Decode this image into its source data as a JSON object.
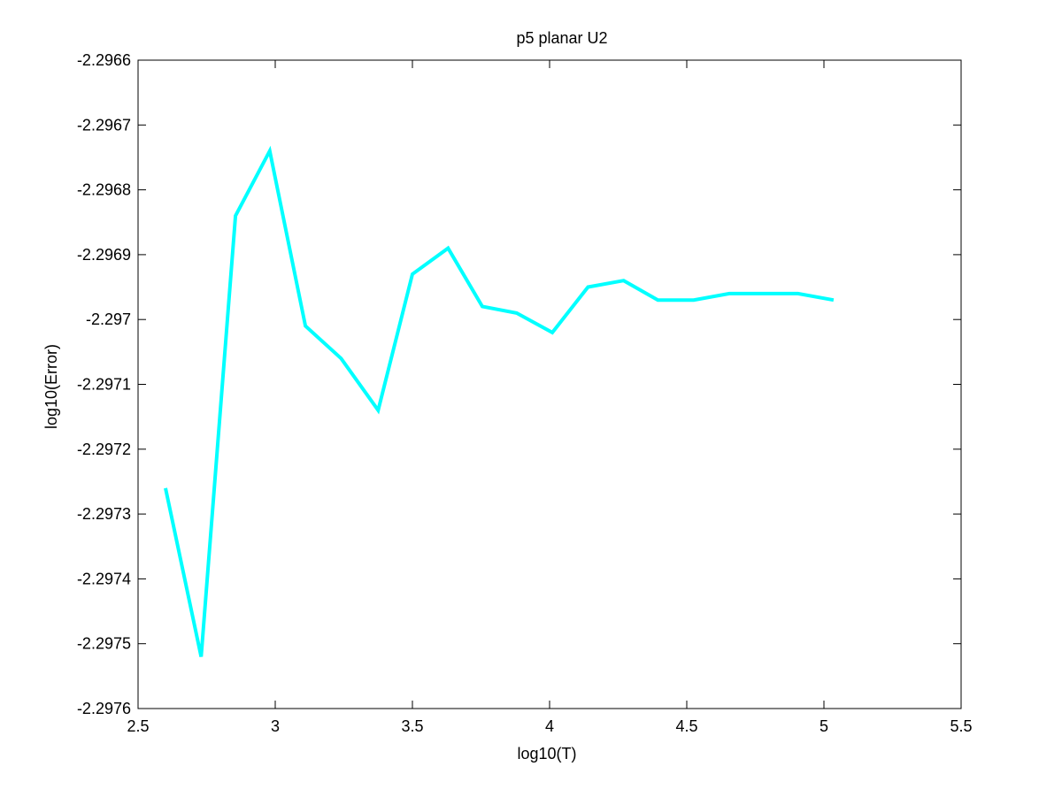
{
  "chart_data": {
    "type": "line",
    "title": "p5 planar U2",
    "xlabel": "log10(T)",
    "ylabel": "log10(Error)",
    "xlim": [
      2.5,
      5.5
    ],
    "ylim": [
      -2.2976,
      -2.2966
    ],
    "x_ticks": [
      2.5,
      3,
      3.5,
      4,
      4.5,
      5,
      5.5
    ],
    "x_tick_labels": [
      "2.5",
      "3",
      "3.5",
      "4",
      "4.5",
      "5",
      "5.5"
    ],
    "y_ticks": [
      -2.2966,
      -2.2967,
      -2.2968,
      -2.2969,
      -2.297,
      -2.2971,
      -2.2972,
      -2.2973,
      -2.2974,
      -2.2975,
      -2.2976
    ],
    "y_tick_labels": [
      "-2.2966",
      "-2.2967",
      "-2.2968",
      "-2.2969",
      "-2.297",
      "-2.2971",
      "-2.2972",
      "-2.2973",
      "-2.2974",
      "-2.2975",
      "-2.2976"
    ],
    "grid": false,
    "series": [
      {
        "color": "#00ffff",
        "x": [
          2.6,
          2.73,
          2.855,
          2.98,
          3.11,
          3.24,
          3.375,
          3.5,
          3.63,
          3.755,
          3.88,
          4.01,
          4.14,
          4.27,
          4.395,
          4.525,
          4.655,
          4.78,
          4.905,
          5.035
        ],
        "values": [
          -2.29726,
          -2.29752,
          -2.29684,
          -2.29674,
          -2.29701,
          -2.29706,
          -2.29714,
          -2.29693,
          -2.29689,
          -2.29698,
          -2.29699,
          -2.29702,
          -2.29695,
          -2.29694,
          -2.29697,
          -2.29697,
          -2.29696,
          -2.29696,
          -2.29696,
          -2.29697
        ]
      }
    ]
  }
}
